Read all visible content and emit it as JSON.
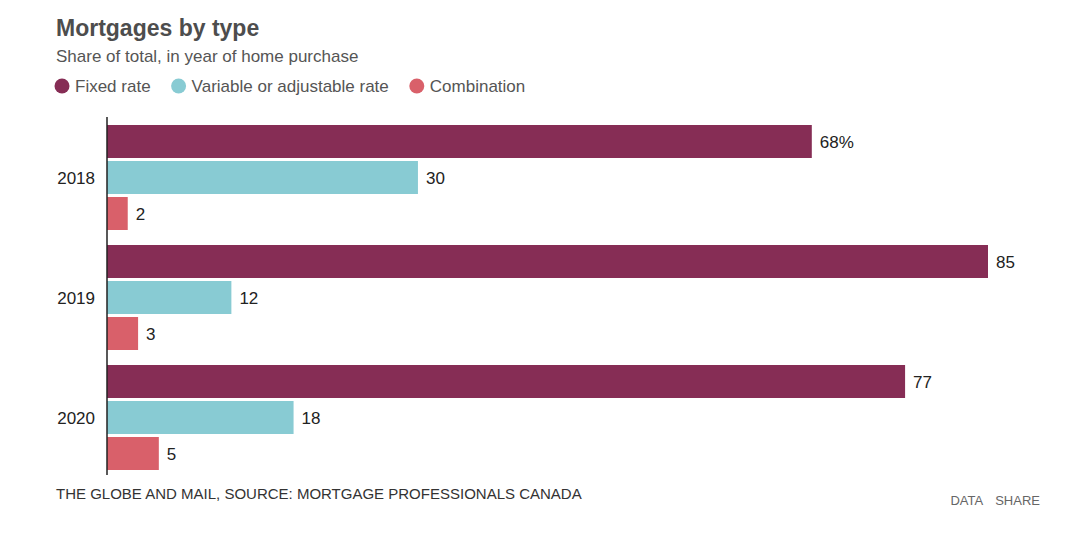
{
  "chart_data": {
    "type": "bar",
    "orientation": "horizontal",
    "title": "Mortgages by type",
    "subtitle": "Share of total, in year of home purchase",
    "categories": [
      "2018",
      "2019",
      "2020"
    ],
    "series": [
      {
        "name": "Fixed rate",
        "color": "#862d55",
        "values": [
          68,
          85,
          77
        ],
        "value_labels": [
          "68%",
          "85",
          "77"
        ]
      },
      {
        "name": "Variable or adjustable rate",
        "color": "#88cbd3",
        "values": [
          30,
          12,
          18
        ]
      },
      {
        "name": "Combination",
        "color": "#d9606a",
        "values": [
          2,
          3,
          5
        ]
      }
    ],
    "data_labels": true,
    "tick_labels": "y",
    "grid": false,
    "legend": "top-left",
    "source": "THE GLOBE AND MAIL, SOURCE: MORTGAGE PROFESSIONALS CANADA",
    "links": [
      "DATA",
      "SHARE"
    ]
  }
}
